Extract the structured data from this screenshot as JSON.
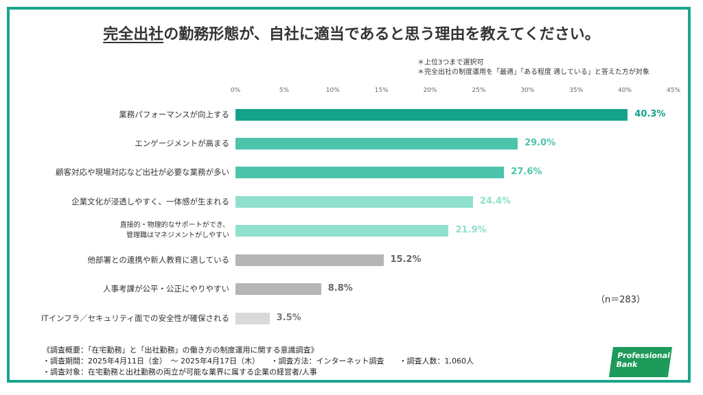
{
  "title": {
    "underlined": "完全出社",
    "rest": "の勤務形態が、自社に適当であると思う理由を教えてください。"
  },
  "notes": [
    "＊上位3つまで選択可",
    "＊完全出社の制度運用を「最適」「ある程度 適している」と答えた方が対象"
  ],
  "chart_data": {
    "type": "bar",
    "orientation": "horizontal",
    "x_ticks": [
      "0%",
      "5%",
      "10%",
      "15%",
      "20%",
      "25%",
      "30%",
      "35%",
      "40%",
      "45%"
    ],
    "xlim": [
      0,
      45
    ],
    "categories": [
      "業務パフォーマンスが向上する",
      "エンゲージメントが高まる",
      "顧客対応や現場対応など出社が必要な業務が多い",
      "企業文化が浸透しやすく、一体感が生まれる",
      "直接的・物理的なサポートができ、管理職はマネジメントがしやすい",
      "他部署との連携や新人教育に適している",
      "人事考課が公平・公正にやりやすい",
      "ITインフラ／セキュリティ面での安全性が確保される"
    ],
    "value_labels": [
      "40.3%",
      "29.0%",
      "27.6%",
      "24.4%",
      "21.9%",
      "15.2%",
      "8.8%",
      "3.5%"
    ],
    "values": [
      40.3,
      29.0,
      27.6,
      24.4,
      21.9,
      15.2,
      8.8,
      3.5
    ],
    "bar_colors": [
      "#14a28a",
      "#4cc4ac",
      "#4cc4ac",
      "#8fe0cc",
      "#8fe0cc",
      "#b5b5b5",
      "#b5b5b5",
      "#d9d9d9"
    ],
    "label_colors": [
      "#14a28a",
      "#4cc4ac",
      "#4cc4ac",
      "#8fe0cc",
      "#8fe0cc",
      "#666666",
      "#666666",
      "#777777"
    ],
    "sample_size": "（n＝283）"
  },
  "category_lines": [
    [
      "業務パフォーマンスが向上する"
    ],
    [
      "エンゲージメントが高まる"
    ],
    [
      "顧客対応や現場対応など出社が必要な業務が多い"
    ],
    [
      "企業文化が浸透しやすく、一体感が生まれる"
    ],
    [
      "直接的・物理的なサポートができ、",
      "管理職はマネジメントがしやすい"
    ],
    [
      "他部署との連携や新人教育に適している"
    ],
    [
      "人事考課が公平・公正にやりやすい"
    ],
    [
      "ITインフラ／セキュリティ面での安全性が確保される"
    ]
  ],
  "footer": [
    "《調査概要：「在宅勤務」と「出社勤務」の働き方の制度運用に関する意識調査》",
    "・調査期間：2025年4月11日（金）　～ 2025年4月17日（木）　　・調査方法：インターネット調査　　・調査人数：1,060人",
    "・調査対象：在宅勤務と出社勤務の両立が可能な業界に属する企業の経営者/人事"
  ],
  "logo": {
    "line1": "Professional",
    "line2": "Bank"
  }
}
